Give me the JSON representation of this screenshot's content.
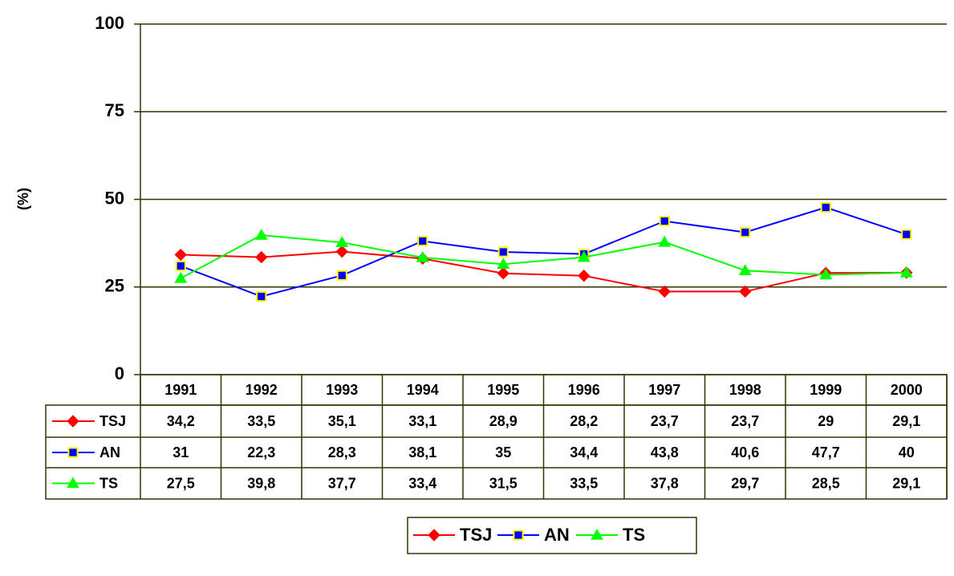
{
  "chart_data": {
    "type": "line",
    "ylabel": "(%)",
    "categories": [
      "1991",
      "1992",
      "1993",
      "1994",
      "1995",
      "1996",
      "1997",
      "1998",
      "1999",
      "2000"
    ],
    "series": [
      {
        "name": "TSJ",
        "color": "#ff0000",
        "marker": "diamond",
        "marker_edge": "#ff0000",
        "values": [
          34.2,
          33.5,
          35.1,
          33.1,
          28.9,
          28.2,
          23.7,
          23.7,
          29,
          29.1
        ],
        "value_labels": [
          "34,2",
          "33,5",
          "35,1",
          "33,1",
          "28,9",
          "28,2",
          "23,7",
          "23,7",
          "29",
          "29,1"
        ]
      },
      {
        "name": "AN",
        "color": "#0000ff",
        "marker": "square",
        "marker_edge": "#ffff00",
        "values": [
          31,
          22.3,
          28.3,
          38.1,
          35,
          34.4,
          43.8,
          40.6,
          47.7,
          40
        ],
        "value_labels": [
          "31",
          "22,3",
          "28,3",
          "38,1",
          "35",
          "34,4",
          "43,8",
          "40,6",
          "47,7",
          "40"
        ]
      },
      {
        "name": "TS",
        "color": "#00ff00",
        "marker": "triangle",
        "marker_edge": "#00ff00",
        "values": [
          27.5,
          39.8,
          37.7,
          33.4,
          31.5,
          33.5,
          37.8,
          29.7,
          28.5,
          29.1
        ],
        "value_labels": [
          "27,5",
          "39,8",
          "37,7",
          "33,4",
          "31,5",
          "33,5",
          "37,8",
          "29,7",
          "28,5",
          "29,1"
        ]
      }
    ],
    "ylim": [
      0,
      100
    ],
    "yticks": [
      0,
      25,
      50,
      75,
      100
    ],
    "grid": true,
    "legend": "bottom"
  }
}
